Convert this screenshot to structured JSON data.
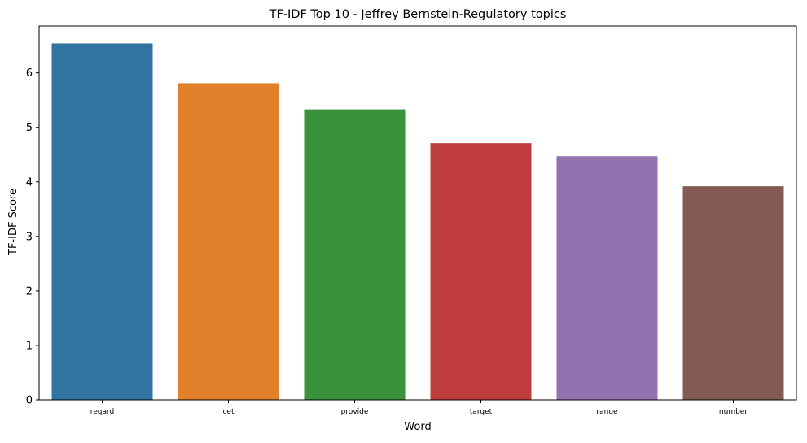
{
  "chart_data": {
    "type": "bar",
    "title": "TF-IDF Top 10 - Jeffrey Bernstein-Regulatory topics",
    "xlabel": "Word",
    "ylabel": "TF-IDF Score",
    "categories": [
      "regard",
      "cet",
      "provide",
      "target",
      "range",
      "number"
    ],
    "values": [
      6.54,
      5.81,
      5.33,
      4.71,
      4.47,
      3.92
    ],
    "colors": [
      "#3274a1",
      "#e1812c",
      "#3a923a",
      "#c03d3e",
      "#9372b2",
      "#845b53"
    ],
    "ylim": [
      0,
      6.86
    ],
    "yticks": [
      0,
      1,
      2,
      3,
      4,
      5,
      6
    ],
    "grid": false,
    "legend": "none"
  }
}
